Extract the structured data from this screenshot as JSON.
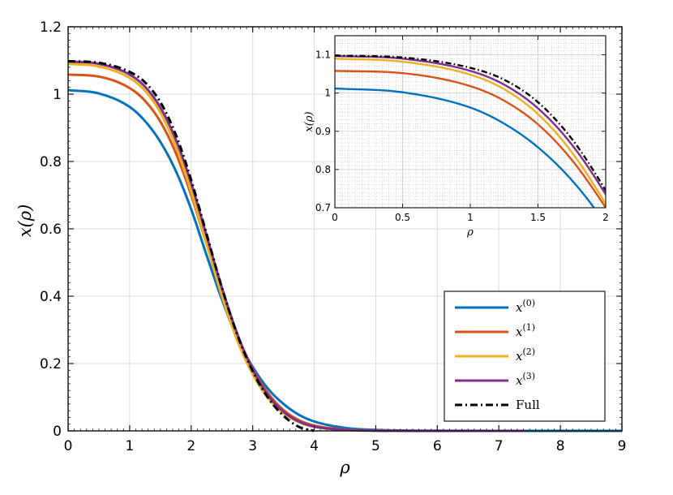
{
  "chart_data": [
    {
      "type": "line",
      "xlabel": "ρ",
      "ylabel": "x(ρ)",
      "xlim": [
        0,
        9
      ],
      "ylim": [
        0,
        1.2
      ],
      "xticks": [
        0,
        1,
        2,
        3,
        4,
        5,
        6,
        7,
        8,
        9
      ],
      "yticks": [
        0,
        0.2,
        0.4,
        0.6,
        0.8,
        1,
        1.2
      ],
      "xtick_labels": [
        "0",
        "1",
        "2",
        "3",
        "4",
        "5",
        "6",
        "7",
        "8",
        "9"
      ],
      "ytick_labels": [
        "0",
        "0.2",
        "0.4",
        "0.6",
        "0.8",
        "1",
        "1.2"
      ],
      "grid": true,
      "legend_position": "bottom-right",
      "series": [
        {
          "name": "x(0)",
          "color": "#0072BD",
          "style": "solid",
          "x": [
            0,
            0.5,
            1,
            1.25,
            1.5,
            1.75,
            2,
            2.25,
            2.5,
            2.75,
            3,
            3.25,
            3.5,
            3.75,
            4,
            4.5,
            5,
            5.5,
            6,
            7,
            8,
            9
          ],
          "y": [
            1.012,
            1.002,
            0.962,
            0.92,
            0.858,
            0.772,
            0.658,
            0.522,
            0.39,
            0.275,
            0.19,
            0.125,
            0.08,
            0.048,
            0.028,
            0.009,
            0.003,
            0.001,
            0.0005,
            0.0001,
            0.0,
            0.0
          ]
        },
        {
          "name": "x(1)",
          "color": "#D95319",
          "style": "solid",
          "x": [
            0,
            0.5,
            1,
            1.25,
            1.5,
            1.75,
            2,
            2.25,
            2.5,
            2.75,
            3,
            3.25,
            3.5,
            3.75,
            4,
            4.5,
            5,
            5.5,
            6,
            7
          ],
          "y": [
            1.058,
            1.052,
            1.018,
            0.98,
            0.918,
            0.825,
            0.7,
            0.555,
            0.412,
            0.285,
            0.185,
            0.112,
            0.062,
            0.032,
            0.016,
            0.004,
            0.001,
            0.0002,
            0.0,
            0.0
          ]
        },
        {
          "name": "x(2)",
          "color": "#EDB120",
          "style": "solid",
          "x": [
            0,
            0.5,
            1,
            1.25,
            1.5,
            1.75,
            2,
            2.25,
            2.5,
            2.75,
            3,
            3.25,
            3.5,
            3.75,
            4,
            4.5,
            5,
            5.5,
            6,
            7
          ],
          "y": [
            1.09,
            1.082,
            1.048,
            1.01,
            0.945,
            0.845,
            0.71,
            0.555,
            0.4,
            0.268,
            0.168,
            0.097,
            0.052,
            0.026,
            0.012,
            0.003,
            0.0005,
            0.0001,
            0.0,
            0.0
          ]
        },
        {
          "name": "x(3)",
          "color": "#7E2F8E",
          "style": "solid",
          "x": [
            0,
            0.5,
            1,
            1.25,
            1.5,
            1.75,
            2,
            2.25,
            2.5,
            2.75,
            3,
            3.25,
            3.5,
            3.75,
            4,
            4.5,
            5,
            5.5,
            6,
            7,
            7.4
          ],
          "y": [
            1.097,
            1.09,
            1.058,
            1.022,
            0.96,
            0.865,
            0.735,
            0.58,
            0.425,
            0.288,
            0.182,
            0.106,
            0.057,
            0.028,
            0.013,
            0.003,
            0.0006,
            0.0001,
            0.0,
            0.0,
            0.0
          ]
        },
        {
          "name": "Full",
          "color": "#000000",
          "style": "dashdot",
          "x": [
            0,
            0.5,
            1,
            1.25,
            1.5,
            1.75,
            2,
            2.25,
            2.5,
            2.75,
            3,
            3.25,
            3.5,
            3.75,
            4
          ],
          "y": [
            1.098,
            1.093,
            1.066,
            1.035,
            0.976,
            0.88,
            0.745,
            0.585,
            0.425,
            0.285,
            0.177,
            0.098,
            0.045,
            0.012,
            0.0
          ]
        }
      ]
    },
    {
      "type": "line",
      "inset": true,
      "xlabel": "ρ",
      "ylabel": "x(ρ)",
      "xlim": [
        0,
        2
      ],
      "ylim": [
        0.7,
        1.15
      ],
      "xticks": [
        0,
        0.5,
        1,
        1.5,
        2
      ],
      "yticks": [
        0.7,
        0.8,
        0.9,
        1,
        1.1
      ],
      "xtick_labels": [
        "0",
        "0.5",
        "1",
        "1.5",
        "2"
      ],
      "ytick_labels": [
        "0.7",
        "0.8",
        "0.9",
        "1",
        "1.1"
      ],
      "grid": "minor-dotted"
    }
  ],
  "legend": {
    "entries": [
      {
        "base": "x",
        "sup": "(0)",
        "color": "#0072BD",
        "style": "solid"
      },
      {
        "base": "x",
        "sup": "(1)",
        "color": "#D95319",
        "style": "solid"
      },
      {
        "base": "x",
        "sup": "(2)",
        "color": "#EDB120",
        "style": "solid"
      },
      {
        "base": "x",
        "sup": "(3)",
        "color": "#7E2F8E",
        "style": "solid"
      },
      {
        "base": "",
        "sup": "",
        "label": "Full",
        "color": "#000000",
        "style": "dashdot"
      }
    ]
  }
}
